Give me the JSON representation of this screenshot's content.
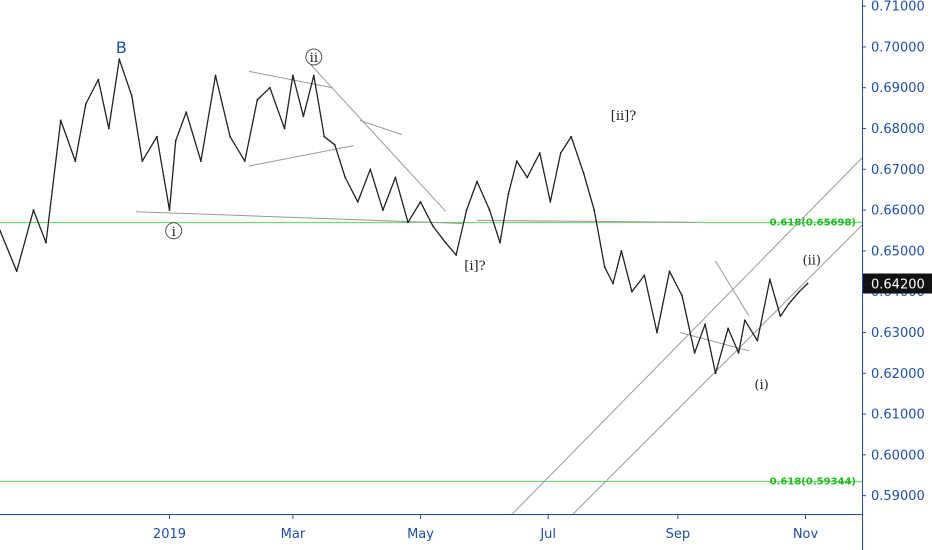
{
  "chart_data": {
    "type": "line",
    "instrument_price_label": "0.64200",
    "ylim": [
      0.5855,
      0.7115
    ],
    "y_ticks": [
      "0.71000",
      "0.70000",
      "0.69000",
      "0.68000",
      "0.67000",
      "0.66000",
      "0.65000",
      "0.64000",
      "0.63000",
      "0.62000",
      "0.61000",
      "0.60000",
      "0.59000"
    ],
    "y_tick_values": [
      0.71,
      0.7,
      0.69,
      0.68,
      0.67,
      0.66,
      0.65,
      0.64,
      0.63,
      0.62,
      0.61,
      0.6,
      0.59
    ],
    "x_ticks": [
      "2019",
      "Mar",
      "May",
      "Jul",
      "Sep",
      "Nov"
    ],
    "x_tick_dates": [
      "2019-01-01",
      "2019-03-01",
      "2019-05-01",
      "2019-07-01",
      "2019-09-01",
      "2019-11-01"
    ],
    "x_range": [
      "2018-10-12",
      "2019-11-28"
    ],
    "series": [
      {
        "x": [
          "2018-10-12",
          "2018-10-20",
          "2018-10-28",
          "2018-11-03",
          "2018-11-10",
          "2018-11-17",
          "2018-11-22",
          "2018-11-28",
          "2018-12-03",
          "2018-12-08",
          "2018-12-14",
          "2018-12-19",
          "2018-12-26",
          "2019-01-01",
          "2019-01-04",
          "2019-01-09",
          "2019-01-16",
          "2019-01-23",
          "2019-01-30",
          "2019-02-06",
          "2019-02-12",
          "2019-02-18",
          "2019-02-25",
          "2019-03-01",
          "2019-03-06",
          "2019-03-11",
          "2019-03-16",
          "2019-03-21",
          "2019-03-26",
          "2019-04-01",
          "2019-04-07",
          "2019-04-13",
          "2019-04-19",
          "2019-04-25",
          "2019-05-01",
          "2019-05-07",
          "2019-05-13",
          "2019-05-18",
          "2019-05-23",
          "2019-05-28",
          "2019-06-03",
          "2019-06-08",
          "2019-06-12",
          "2019-06-16",
          "2019-06-21",
          "2019-06-27",
          "2019-07-02",
          "2019-07-07",
          "2019-07-12",
          "2019-07-18",
          "2019-07-23",
          "2019-07-28",
          "2019-08-01",
          "2019-08-05",
          "2019-08-10",
          "2019-08-16",
          "2019-08-22",
          "2019-08-28",
          "2019-09-03",
          "2019-09-09",
          "2019-09-14",
          "2019-09-19",
          "2019-09-25",
          "2019-09-30",
          "2019-10-03",
          "2019-10-09",
          "2019-10-15",
          "2019-10-20",
          "2019-10-24",
          "2019-10-29",
          "2019-11-02"
        ],
        "y": [
          0.655,
          0.645,
          0.66,
          0.652,
          0.682,
          0.672,
          0.686,
          0.692,
          0.68,
          0.697,
          0.688,
          0.672,
          0.678,
          0.66,
          0.677,
          0.684,
          0.672,
          0.693,
          0.678,
          0.672,
          0.687,
          0.69,
          0.68,
          0.693,
          0.683,
          0.693,
          0.678,
          0.676,
          0.668,
          0.662,
          0.67,
          0.66,
          0.668,
          0.657,
          0.662,
          0.656,
          0.652,
          0.649,
          0.66,
          0.667,
          0.66,
          0.652,
          0.664,
          0.672,
          0.668,
          0.674,
          0.662,
          0.674,
          0.678,
          0.669,
          0.66,
          0.646,
          0.642,
          0.65,
          0.64,
          0.644,
          0.63,
          0.645,
          0.639,
          0.625,
          0.632,
          0.62,
          0.631,
          0.625,
          0.633,
          0.628,
          0.643,
          0.634,
          0.637,
          0.64,
          0.642
        ]
      }
    ],
    "annotations": [
      {
        "text": "B",
        "date": "2018-12-09",
        "value": 0.6985
      },
      {
        "text": "i",
        "date": "2019-01-03",
        "value": 0.6537
      },
      {
        "text": "ii",
        "date": "2019-03-11",
        "value": 0.6963
      },
      {
        "text": "[i]?",
        "date": "2019-05-27",
        "value": 0.6453
      },
      {
        "text": "[ii]?",
        "date": "2019-08-06",
        "value": 0.6821
      },
      {
        "text": "(i)",
        "date": "2019-10-11",
        "value": 0.6162
      },
      {
        "text": "(ii)",
        "date": "2019-11-04",
        "value": 0.6467
      }
    ],
    "fib_levels": [
      {
        "label": "0.618(0.65698)",
        "value": 0.65698
      },
      {
        "label": "0.618(0.59344)",
        "value": 0.59344
      }
    ],
    "colors": {
      "price_line": "#222222",
      "trend_line": "#999999",
      "fib_line": "#55dd55",
      "fib_text": "#22bb22",
      "axis_text": "#1f4fa8",
      "price_badge": "#111111",
      "b_label": "#1f4fa8"
    },
    "grid": false
  }
}
